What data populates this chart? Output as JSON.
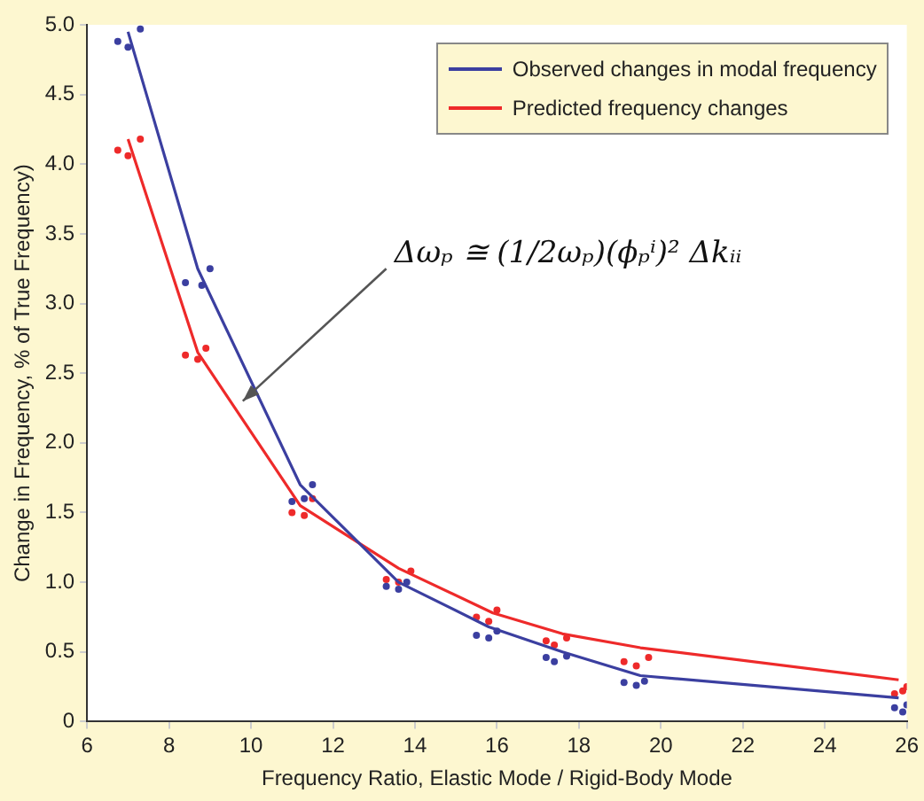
{
  "chart_data": {
    "type": "line",
    "xlabel": "Frequency Ratio, Elastic Mode / Rigid-Body Mode",
    "ylabel": "Change in Frequency, % of True Frequency)",
    "xlim": [
      6,
      26
    ],
    "xticks": [
      6,
      8,
      10,
      12,
      14,
      16,
      18,
      20,
      22,
      24,
      26
    ],
    "ylim": [
      0,
      5
    ],
    "yticks": [
      0,
      0.5,
      {
        "value": 1,
        "label": "1.0"
      },
      1.5,
      {
        "value": 2,
        "label": "2.0"
      },
      2.5,
      {
        "value": 3,
        "label": "3.0"
      },
      3.5,
      {
        "value": 4,
        "label": "4.0"
      },
      4.5,
      {
        "value": 5,
        "label": "5.0"
      }
    ],
    "grid": false,
    "legend": "top right",
    "line_style": "solid",
    "marker": "none",
    "series": [
      {
        "name": "Observed changes in modal frequency",
        "color": "#3b3fa0",
        "x": [
          7.0,
          8.7,
          11.2,
          13.6,
          15.8,
          17.6,
          19.5,
          25.8
        ],
        "values": [
          4.95,
          3.25,
          1.7,
          1.0,
          0.68,
          0.5,
          0.33,
          0.17
        ]
      },
      {
        "name": "Predicted frequency changes",
        "color": "#ee2a2a",
        "x": [
          7.0,
          8.7,
          11.2,
          13.6,
          15.9,
          17.6,
          19.5,
          25.8
        ],
        "values": [
          4.18,
          2.65,
          1.55,
          1.1,
          0.78,
          0.63,
          0.53,
          0.3
        ]
      },
      {
        "type": "scatter",
        "marker": "circle",
        "color": "#3b3fa0",
        "x": [
          6.75,
          7.0,
          7.3,
          8.4,
          8.8,
          9.0,
          11.0,
          11.3,
          11.5,
          13.3,
          13.6,
          13.8,
          15.5,
          15.8,
          16.0,
          17.2,
          17.4,
          17.7,
          19.1,
          19.4,
          19.6,
          25.7,
          25.9,
          26.0
        ],
        "values": [
          4.88,
          4.84,
          4.97,
          3.15,
          3.13,
          3.25,
          1.58,
          1.6,
          1.7,
          0.97,
          0.95,
          1.0,
          0.62,
          0.6,
          0.65,
          0.46,
          0.43,
          0.47,
          0.28,
          0.26,
          0.29,
          0.1,
          0.07,
          0.12
        ]
      },
      {
        "type": "scatter",
        "marker": "circle",
        "color": "#ee2a2a",
        "x": [
          6.75,
          7.0,
          7.3,
          8.4,
          8.7,
          8.9,
          11.0,
          11.3,
          11.5,
          13.3,
          13.6,
          13.9,
          15.5,
          15.8,
          16.0,
          17.2,
          17.4,
          17.7,
          19.1,
          19.4,
          19.7,
          25.7,
          25.9,
          26.0
        ],
        "values": [
          4.1,
          4.06,
          4.18,
          2.63,
          2.6,
          2.68,
          1.5,
          1.48,
          1.6,
          1.02,
          1.0,
          1.08,
          0.75,
          0.72,
          0.8,
          0.58,
          0.55,
          0.6,
          0.43,
          0.4,
          0.46,
          0.2,
          0.22,
          0.25
        ]
      }
    ],
    "annotations": [
      "Δωₚ ≅ (1/2ωₚ)(ϕₚⁱ)² Δkᵢᵢ"
    ]
  }
}
